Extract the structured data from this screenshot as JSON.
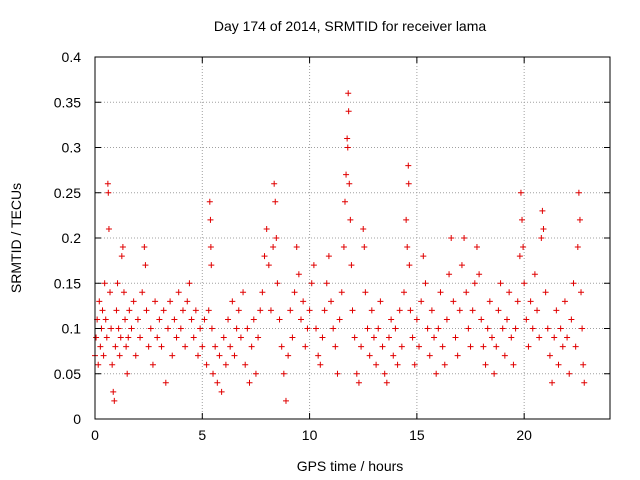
{
  "chart_data": {
    "type": "scatter",
    "title": "Day 174 of 2014, SRMTID for receiver lama",
    "xlabel": "GPS time / hours",
    "ylabel": "SRMTID / TECUs",
    "xlim": [
      0,
      24
    ],
    "ylim": [
      0,
      0.4
    ],
    "xticks": [
      0,
      5,
      10,
      15,
      20
    ],
    "yticks": [
      0,
      0.05,
      0.1,
      0.15,
      0.2,
      0.25,
      0.3,
      0.35,
      0.4
    ],
    "xtick_labels": [
      "0",
      "5",
      "10",
      "15",
      "20"
    ],
    "ytick_labels": [
      "0",
      "0.05",
      "0.1",
      "0.15",
      "0.2",
      "0.25",
      "0.3",
      "0.35",
      "0.4"
    ],
    "grid": true,
    "marker": "+",
    "color": "#e00000",
    "series": [
      {
        "name": "SRMTID",
        "points": [
          [
            0.0,
            0.07
          ],
          [
            0.05,
            0.09
          ],
          [
            0.1,
            0.11
          ],
          [
            0.15,
            0.06
          ],
          [
            0.2,
            0.13
          ],
          [
            0.25,
            0.08
          ],
          [
            0.3,
            0.1
          ],
          [
            0.35,
            0.12
          ],
          [
            0.4,
            0.07
          ],
          [
            0.45,
            0.15
          ],
          [
            0.5,
            0.11
          ],
          [
            0.55,
            0.09
          ],
          [
            0.6,
            0.26
          ],
          [
            0.62,
            0.25
          ],
          [
            0.65,
            0.21
          ],
          [
            0.7,
            0.14
          ],
          [
            0.75,
            0.1
          ],
          [
            0.8,
            0.06
          ],
          [
            0.85,
            0.03
          ],
          [
            0.9,
            0.02
          ],
          [
            0.95,
            0.08
          ],
          [
            1.0,
            0.12
          ],
          [
            1.05,
            0.15
          ],
          [
            1.1,
            0.1
          ],
          [
            1.15,
            0.07
          ],
          [
            1.2,
            0.09
          ],
          [
            1.25,
            0.18
          ],
          [
            1.3,
            0.19
          ],
          [
            1.35,
            0.14
          ],
          [
            1.4,
            0.11
          ],
          [
            1.45,
            0.08
          ],
          [
            1.5,
            0.05
          ],
          [
            1.55,
            0.09
          ],
          [
            1.6,
            0.12
          ],
          [
            1.7,
            0.1
          ],
          [
            1.8,
            0.13
          ],
          [
            1.9,
            0.07
          ],
          [
            2.0,
            0.11
          ],
          [
            2.1,
            0.09
          ],
          [
            2.2,
            0.14
          ],
          [
            2.3,
            0.19
          ],
          [
            2.35,
            0.17
          ],
          [
            2.4,
            0.12
          ],
          [
            2.5,
            0.08
          ],
          [
            2.6,
            0.1
          ],
          [
            2.7,
            0.06
          ],
          [
            2.8,
            0.13
          ],
          [
            2.9,
            0.09
          ],
          [
            3.0,
            0.11
          ],
          [
            3.1,
            0.08
          ],
          [
            3.2,
            0.12
          ],
          [
            3.3,
            0.04
          ],
          [
            3.4,
            0.1
          ],
          [
            3.5,
            0.13
          ],
          [
            3.6,
            0.07
          ],
          [
            3.7,
            0.11
          ],
          [
            3.8,
            0.09
          ],
          [
            3.9,
            0.14
          ],
          [
            4.0,
            0.1
          ],
          [
            4.1,
            0.12
          ],
          [
            4.2,
            0.08
          ],
          [
            4.3,
            0.13
          ],
          [
            4.4,
            0.15
          ],
          [
            4.5,
            0.11
          ],
          [
            4.6,
            0.09
          ],
          [
            4.7,
            0.12
          ],
          [
            4.8,
            0.07
          ],
          [
            4.9,
            0.1
          ],
          [
            5.0,
            0.08
          ],
          [
            5.1,
            0.11
          ],
          [
            5.2,
            0.06
          ],
          [
            5.3,
            0.12
          ],
          [
            5.35,
            0.24
          ],
          [
            5.38,
            0.22
          ],
          [
            5.4,
            0.19
          ],
          [
            5.42,
            0.17
          ],
          [
            5.45,
            0.1
          ],
          [
            5.5,
            0.05
          ],
          [
            5.6,
            0.08
          ],
          [
            5.7,
            0.04
          ],
          [
            5.8,
            0.07
          ],
          [
            5.9,
            0.03
          ],
          [
            6.0,
            0.09
          ],
          [
            6.1,
            0.06
          ],
          [
            6.2,
            0.11
          ],
          [
            6.3,
            0.08
          ],
          [
            6.4,
            0.13
          ],
          [
            6.5,
            0.07
          ],
          [
            6.6,
            0.1
          ],
          [
            6.7,
            0.12
          ],
          [
            6.8,
            0.09
          ],
          [
            6.9,
            0.14
          ],
          [
            7.0,
            0.06
          ],
          [
            7.1,
            0.1
          ],
          [
            7.2,
            0.04
          ],
          [
            7.3,
            0.08
          ],
          [
            7.4,
            0.11
          ],
          [
            7.5,
            0.05
          ],
          [
            7.6,
            0.09
          ],
          [
            7.7,
            0.12
          ],
          [
            7.8,
            0.14
          ],
          [
            7.9,
            0.18
          ],
          [
            8.0,
            0.21
          ],
          [
            8.1,
            0.17
          ],
          [
            8.2,
            0.12
          ],
          [
            8.3,
            0.19
          ],
          [
            8.35,
            0.26
          ],
          [
            8.4,
            0.24
          ],
          [
            8.45,
            0.2
          ],
          [
            8.5,
            0.15
          ],
          [
            8.6,
            0.11
          ],
          [
            8.7,
            0.08
          ],
          [
            8.8,
            0.05
          ],
          [
            8.9,
            0.02
          ],
          [
            9.0,
            0.07
          ],
          [
            9.1,
            0.12
          ],
          [
            9.2,
            0.09
          ],
          [
            9.3,
            0.14
          ],
          [
            9.4,
            0.19
          ],
          [
            9.5,
            0.16
          ],
          [
            9.6,
            0.11
          ],
          [
            9.7,
            0.13
          ],
          [
            9.8,
            0.08
          ],
          [
            9.9,
            0.1
          ],
          [
            10.0,
            0.12
          ],
          [
            10.1,
            0.15
          ],
          [
            10.2,
            0.17
          ],
          [
            10.3,
            0.1
          ],
          [
            10.4,
            0.07
          ],
          [
            10.5,
            0.06
          ],
          [
            10.6,
            0.09
          ],
          [
            10.7,
            0.12
          ],
          [
            10.8,
            0.15
          ],
          [
            10.9,
            0.18
          ],
          [
            11.0,
            0.13
          ],
          [
            11.1,
            0.1
          ],
          [
            11.2,
            0.08
          ],
          [
            11.3,
            0.05
          ],
          [
            11.4,
            0.11
          ],
          [
            11.5,
            0.14
          ],
          [
            11.6,
            0.19
          ],
          [
            11.65,
            0.24
          ],
          [
            11.7,
            0.27
          ],
          [
            11.75,
            0.31
          ],
          [
            11.78,
            0.3
          ],
          [
            11.8,
            0.36
          ],
          [
            11.82,
            0.34
          ],
          [
            11.85,
            0.26
          ],
          [
            11.9,
            0.22
          ],
          [
            11.95,
            0.17
          ],
          [
            12.0,
            0.12
          ],
          [
            12.1,
            0.09
          ],
          [
            12.2,
            0.05
          ],
          [
            12.3,
            0.04
          ],
          [
            12.4,
            0.08
          ],
          [
            12.5,
            0.21
          ],
          [
            12.55,
            0.19
          ],
          [
            12.6,
            0.14
          ],
          [
            12.7,
            0.1
          ],
          [
            12.8,
            0.07
          ],
          [
            12.9,
            0.12
          ],
          [
            13.0,
            0.09
          ],
          [
            13.1,
            0.06
          ],
          [
            13.2,
            0.1
          ],
          [
            13.3,
            0.13
          ],
          [
            13.4,
            0.08
          ],
          [
            13.5,
            0.05
          ],
          [
            13.6,
            0.04
          ],
          [
            13.7,
            0.09
          ],
          [
            13.8,
            0.11
          ],
          [
            13.9,
            0.07
          ],
          [
            14.0,
            0.1
          ],
          [
            14.1,
            0.06
          ],
          [
            14.2,
            0.12
          ],
          [
            14.3,
            0.08
          ],
          [
            14.4,
            0.14
          ],
          [
            14.5,
            0.22
          ],
          [
            14.55,
            0.19
          ],
          [
            14.6,
            0.28
          ],
          [
            14.62,
            0.26
          ],
          [
            14.65,
            0.17
          ],
          [
            14.7,
            0.12
          ],
          [
            14.8,
            0.09
          ],
          [
            14.9,
            0.06
          ],
          [
            15.0,
            0.11
          ],
          [
            15.1,
            0.08
          ],
          [
            15.2,
            0.13
          ],
          [
            15.3,
            0.18
          ],
          [
            15.4,
            0.15
          ],
          [
            15.5,
            0.1
          ],
          [
            15.6,
            0.07
          ],
          [
            15.7,
            0.12
          ],
          [
            15.8,
            0.09
          ],
          [
            15.9,
            0.05
          ],
          [
            16.0,
            0.1
          ],
          [
            16.1,
            0.14
          ],
          [
            16.2,
            0.08
          ],
          [
            16.3,
            0.06
          ],
          [
            16.4,
            0.11
          ],
          [
            16.5,
            0.16
          ],
          [
            16.6,
            0.2
          ],
          [
            16.7,
            0.13
          ],
          [
            16.8,
            0.09
          ],
          [
            16.9,
            0.07
          ],
          [
            17.0,
            0.12
          ],
          [
            17.1,
            0.17
          ],
          [
            17.2,
            0.2
          ],
          [
            17.3,
            0.14
          ],
          [
            17.4,
            0.1
          ],
          [
            17.5,
            0.08
          ],
          [
            17.6,
            0.12
          ],
          [
            17.7,
            0.15
          ],
          [
            17.8,
            0.19
          ],
          [
            17.9,
            0.16
          ],
          [
            18.0,
            0.11
          ],
          [
            18.1,
            0.08
          ],
          [
            18.2,
            0.06
          ],
          [
            18.3,
            0.1
          ],
          [
            18.4,
            0.13
          ],
          [
            18.5,
            0.09
          ],
          [
            18.6,
            0.05
          ],
          [
            18.7,
            0.08
          ],
          [
            18.8,
            0.12
          ],
          [
            18.9,
            0.15
          ],
          [
            19.0,
            0.1
          ],
          [
            19.1,
            0.07
          ],
          [
            19.2,
            0.11
          ],
          [
            19.3,
            0.14
          ],
          [
            19.4,
            0.09
          ],
          [
            19.5,
            0.06
          ],
          [
            19.6,
            0.1
          ],
          [
            19.7,
            0.13
          ],
          [
            19.8,
            0.18
          ],
          [
            19.85,
            0.25
          ],
          [
            19.9,
            0.22
          ],
          [
            19.95,
            0.19
          ],
          [
            20.0,
            0.15
          ],
          [
            20.1,
            0.11
          ],
          [
            20.2,
            0.08
          ],
          [
            20.3,
            0.13
          ],
          [
            20.4,
            0.1
          ],
          [
            20.5,
            0.16
          ],
          [
            20.6,
            0.12
          ],
          [
            20.7,
            0.09
          ],
          [
            20.8,
            0.2
          ],
          [
            20.85,
            0.23
          ],
          [
            20.9,
            0.21
          ],
          [
            21.0,
            0.14
          ],
          [
            21.1,
            0.1
          ],
          [
            21.2,
            0.07
          ],
          [
            21.3,
            0.04
          ],
          [
            21.4,
            0.09
          ],
          [
            21.5,
            0.12
          ],
          [
            21.6,
            0.06
          ],
          [
            21.7,
            0.1
          ],
          [
            21.8,
            0.08
          ],
          [
            21.9,
            0.13
          ],
          [
            22.0,
            0.09
          ],
          [
            22.1,
            0.05
          ],
          [
            22.2,
            0.11
          ],
          [
            22.3,
            0.15
          ],
          [
            22.4,
            0.08
          ],
          [
            22.5,
            0.19
          ],
          [
            22.55,
            0.25
          ],
          [
            22.6,
            0.22
          ],
          [
            22.65,
            0.14
          ],
          [
            22.7,
            0.1
          ],
          [
            22.75,
            0.06
          ],
          [
            22.8,
            0.04
          ]
        ]
      }
    ]
  }
}
